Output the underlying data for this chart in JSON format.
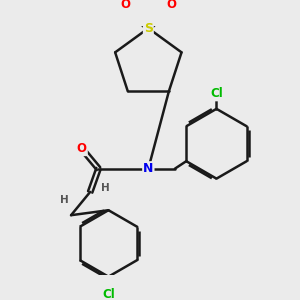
{
  "background_color": "#ebebeb",
  "bond_color": "#1a1a1a",
  "atom_colors": {
    "O": "#ff0000",
    "N": "#0000ee",
    "S": "#cccc00",
    "Cl": "#00bb00",
    "C": "#1a1a1a",
    "H": "#555555"
  },
  "figsize": [
    3.0,
    3.0
  ],
  "dpi": 100
}
